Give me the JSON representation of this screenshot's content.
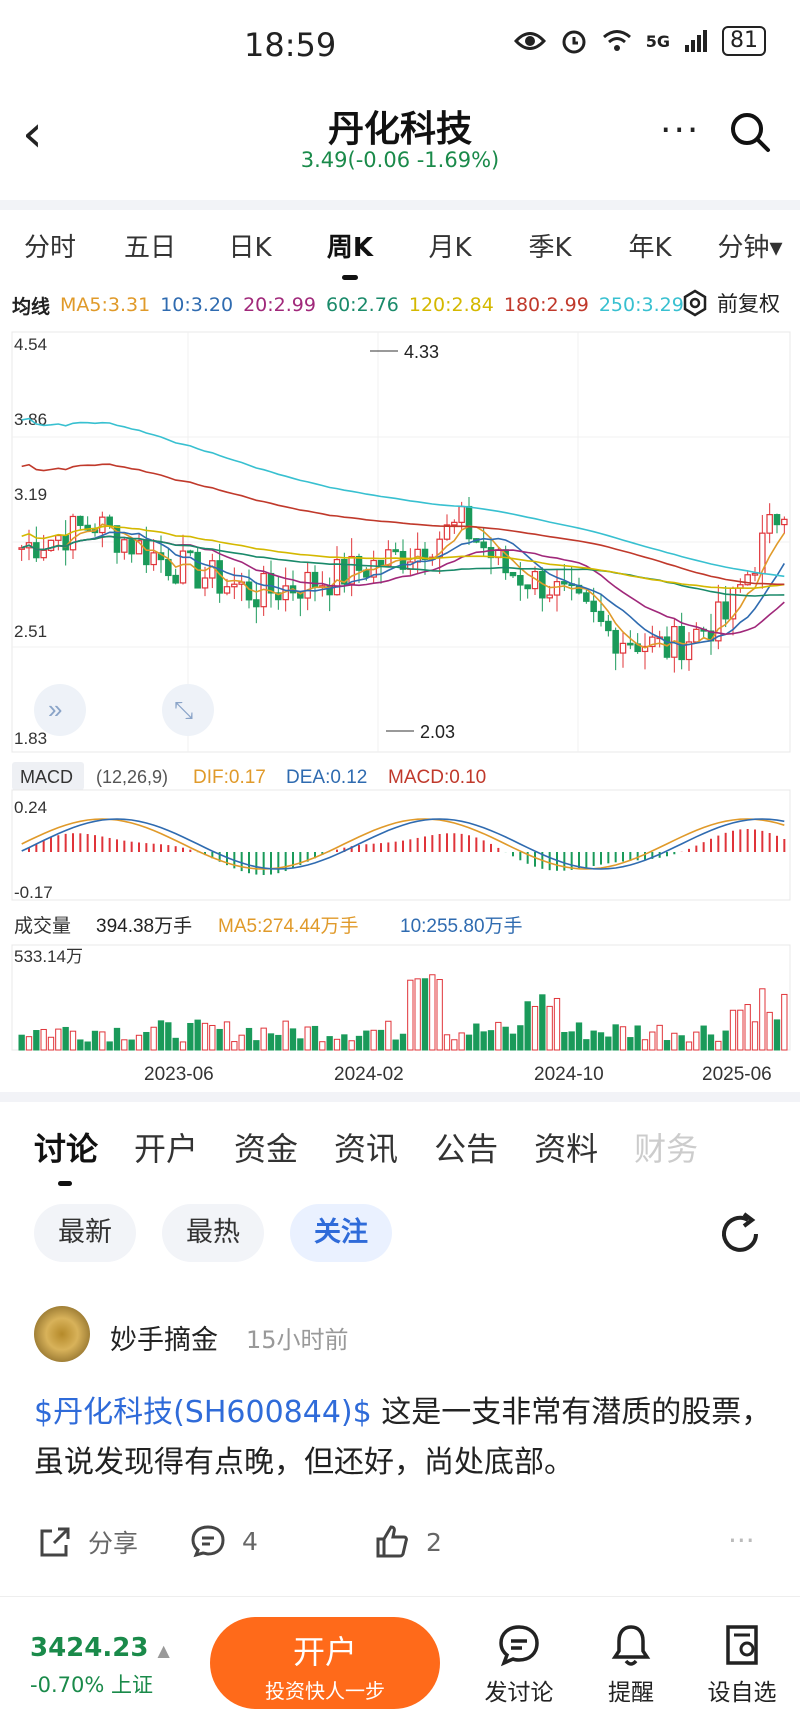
{
  "status": {
    "time": "18:59",
    "signal": "5G",
    "battery": "81"
  },
  "header": {
    "title": "丹化科技",
    "subtitle": "3.49(-0.06 -1.69%)"
  },
  "ktabs": [
    "分时",
    "五日",
    "日K",
    "周K",
    "月K",
    "季K",
    "年K",
    "分钟▾"
  ],
  "ma": {
    "label": "均线",
    "items": [
      {
        "text": "MA5:3.31",
        "color": "#e09a2a"
      },
      {
        "text": "10:3.20",
        "color": "#2f6bb0"
      },
      {
        "text": "20:2.99",
        "color": "#a0287a"
      },
      {
        "text": "60:2.76",
        "color": "#1a8a6a"
      },
      {
        "text": "120:2.84",
        "color": "#d4b800"
      },
      {
        "text": "180:2.99",
        "color": "#c0392b"
      },
      {
        "text": "250:3.29",
        "color": "#38c0d0"
      }
    ],
    "adjust": "前复权"
  },
  "chart_data": {
    "type": "candlestick",
    "y_ticks": [
      "4.54",
      "3.86",
      "3.19",
      "2.51",
      "1.83"
    ],
    "high_label": "4.33",
    "low_label": "2.03",
    "x_labels": [
      "2023-06",
      "2024-02",
      "2024-10",
      "2025-06"
    ],
    "macd": {
      "label": "MACD",
      "params": "(12,26,9)",
      "dif": "DIF:0.17",
      "dea": "DEA:0.12",
      "macd": "MACD:0.10",
      "ticks": [
        "0.24",
        "-0.17"
      ]
    },
    "volume": {
      "label": "成交量",
      "value": "394.38万手",
      "ma5": "MA5:274.44万手",
      "ma10": "10:255.80万手",
      "max": "533.14万"
    }
  },
  "tabs": [
    "讨论",
    "开户",
    "资金",
    "资讯",
    "公告",
    "资料",
    "财务"
  ],
  "filters": [
    "最新",
    "最热",
    "关注"
  ],
  "post": {
    "user": "妙手摘金",
    "time": "15小时前",
    "tag": "$丹化科技(SH600844)$",
    "text": " 这是一支非常有潜质的股票，虽说发现得有点晚，但还好，尚处底部。",
    "share": "分享",
    "comments": "4",
    "likes": "2"
  },
  "bottom": {
    "index_value": "3424.23",
    "index_change": "-0.70% 上证",
    "open_title": "开户",
    "open_sub": "投资快人一步",
    "discuss": "发讨论",
    "remind": "提醒",
    "watch": "设自选"
  }
}
